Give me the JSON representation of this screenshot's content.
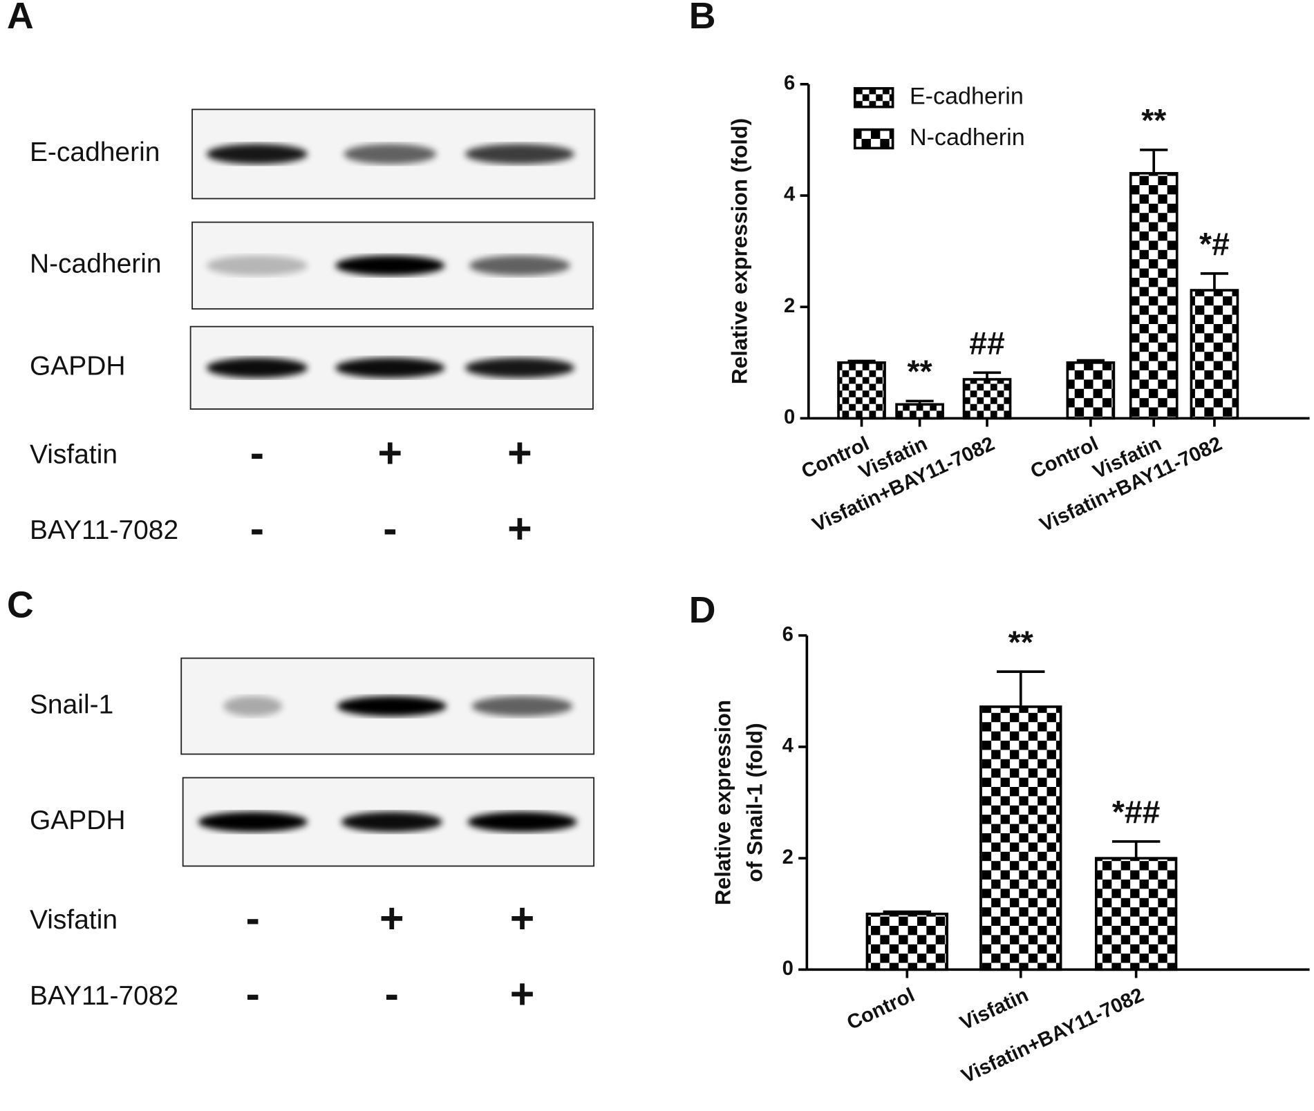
{
  "blots": [
    {
      "panel": "A",
      "bands": [
        "E-cadherin",
        "N-cadherin",
        "GAPDH"
      ],
      "treatments": [
        {
          "name": "Visfatin",
          "signs": [
            "-",
            "+",
            "+"
          ]
        },
        {
          "name": "BAY11-7082",
          "signs": [
            "-",
            "-",
            "+"
          ]
        }
      ]
    },
    {
      "panel": "C",
      "bands": [
        "Snail-1",
        "GAPDH"
      ],
      "treatments": [
        {
          "name": "Visfatin",
          "signs": [
            "-",
            "+",
            "+"
          ]
        },
        {
          "name": "BAY11-7082",
          "signs": [
            "-",
            "-",
            "+"
          ]
        }
      ]
    }
  ],
  "chart_data": [
    {
      "type": "bar",
      "panel": "B",
      "ylabel": [
        "Relative expression (fold)"
      ],
      "categories": [
        "Control",
        "Visfatin",
        "Visfatin+BAY11-7082"
      ],
      "series": [
        {
          "name": "E-cadherin",
          "color": "#000000",
          "values": [
            1.0,
            0.25,
            0.7
          ],
          "errors": [
            0.03,
            0.06,
            0.12
          ],
          "annotations": [
            null,
            "**",
            "##"
          ]
        },
        {
          "name": "N-cadherin",
          "color": "#000000",
          "values": [
            1.0,
            4.4,
            2.3
          ],
          "errors": [
            0.04,
            0.42,
            0.3
          ],
          "annotations": [
            null,
            "**",
            "*#"
          ]
        }
      ],
      "ylim": [
        0,
        6
      ],
      "yticks": [
        0,
        2,
        4,
        6
      ],
      "legend": "top-left"
    },
    {
      "type": "bar",
      "panel": "D",
      "ylabel": [
        "Relative expression",
        "of Snail-1 (fold)"
      ],
      "categories": [
        "Control",
        "Visfatin",
        "Visfatin+BAY11-7082"
      ],
      "color": "#000000",
      "values": [
        1.0,
        4.72,
        2.0
      ],
      "errors": [
        0.04,
        0.63,
        0.3
      ],
      "annotations": [
        null,
        "**",
        "*##"
      ],
      "ylim": [
        0,
        6
      ],
      "yticks": [
        0,
        2,
        4,
        6
      ]
    }
  ]
}
